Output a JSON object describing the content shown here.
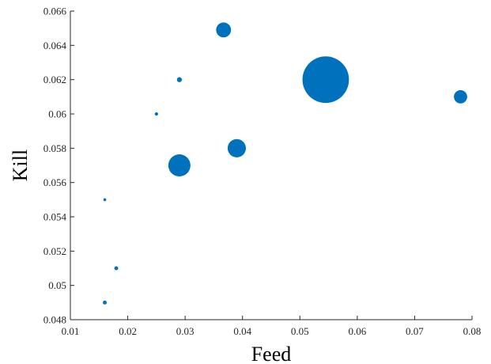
{
  "chart_data": {
    "type": "scatter",
    "xlabel": "Feed",
    "ylabel": "Kill",
    "xlim": [
      0.01,
      0.08
    ],
    "ylim": [
      0.048,
      0.066
    ],
    "xticks": [
      "0.01",
      "0.02",
      "0.03",
      "0.04",
      "0.05",
      "0.06",
      "0.07",
      "0.08"
    ],
    "yticks": [
      "0.048",
      "0.05",
      "0.052",
      "0.054",
      "0.056",
      "0.058",
      "0.06",
      "0.062",
      "0.064",
      "0.066"
    ],
    "grid": false,
    "marker_color": "#0072bd",
    "points": [
      {
        "x": 0.0367,
        "y": 0.0649,
        "size": 2.7
      },
      {
        "x": 0.029,
        "y": 0.062,
        "size": 0.9
      },
      {
        "x": 0.0545,
        "y": 0.062,
        "size": 8.4
      },
      {
        "x": 0.078,
        "y": 0.061,
        "size": 2.4
      },
      {
        "x": 0.025,
        "y": 0.06,
        "size": 0.6
      },
      {
        "x": 0.039,
        "y": 0.058,
        "size": 3.3
      },
      {
        "x": 0.029,
        "y": 0.057,
        "size": 4.0
      },
      {
        "x": 0.016,
        "y": 0.055,
        "size": 0.4
      },
      {
        "x": 0.018,
        "y": 0.051,
        "size": 0.7
      },
      {
        "x": 0.016,
        "y": 0.049,
        "size": 0.7
      }
    ]
  }
}
